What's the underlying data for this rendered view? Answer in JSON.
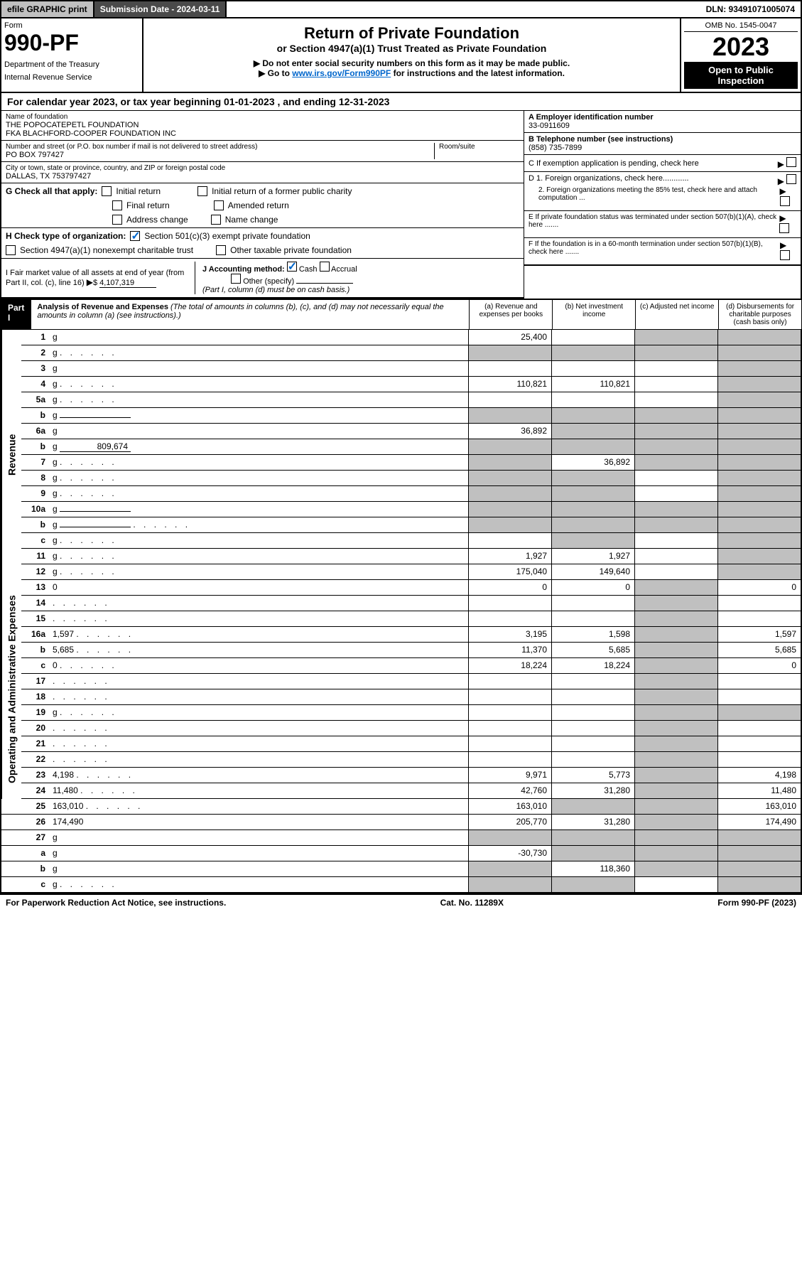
{
  "topbar": {
    "print": "efile GRAPHIC print",
    "submission": "Submission Date - 2024-03-11",
    "dln": "DLN: 93491071005074"
  },
  "header": {
    "form_label": "Form",
    "form_num": "990-PF",
    "dept1": "Department of the Treasury",
    "dept2": "Internal Revenue Service",
    "title": "Return of Private Foundation",
    "subtitle": "or Section 4947(a)(1) Trust Treated as Private Foundation",
    "note1": "▶ Do not enter social security numbers on this form as it may be made public.",
    "note2_pre": "▶ Go to ",
    "note2_link": "www.irs.gov/Form990PF",
    "note2_post": " for instructions and the latest information.",
    "omb": "OMB No. 1545-0047",
    "year": "2023",
    "open": "Open to Public Inspection"
  },
  "calyear": "For calendar year 2023, or tax year beginning 01-01-2023                           , and ending 12-31-2023",
  "info": {
    "name_lbl": "Name of foundation",
    "name1": "THE POPOCATEPETL FOUNDATION",
    "name2": "FKA BLACHFORD-COOPER FOUNDATION INC",
    "addr_lbl": "Number and street (or P.O. box number if mail is not delivered to street address)",
    "addr": "PO BOX 797427",
    "room_lbl": "Room/suite",
    "city_lbl": "City or town, state or province, country, and ZIP or foreign postal code",
    "city": "DALLAS, TX  753797427",
    "ein_lbl": "A Employer identification number",
    "ein": "33-0911609",
    "phone_lbl": "B Telephone number (see instructions)",
    "phone": "(858) 735-7899",
    "c_lbl": "C If exemption application is pending, check here",
    "d1_lbl": "D 1. Foreign organizations, check here............",
    "d2_lbl": "2. Foreign organizations meeting the 85% test, check here and attach computation ...",
    "e_lbl": "E  If private foundation status was terminated under section 507(b)(1)(A), check here .......",
    "f_lbl": "F  If the foundation is in a 60-month termination under section 507(b)(1)(B), check here .......",
    "g_lbl": "G Check all that apply:",
    "g1": "Initial return",
    "g2": "Final return",
    "g3": "Address change",
    "g4": "Initial return of a former public charity",
    "g5": "Amended return",
    "g6": "Name change",
    "h_lbl": "H Check type of organization:",
    "h1": "Section 501(c)(3) exempt private foundation",
    "h2": "Section 4947(a)(1) nonexempt charitable trust",
    "h3": "Other taxable private foundation",
    "i_lbl": "I Fair market value of all assets at end of year (from Part II, col. (c), line 16)",
    "i_val": "4,107,319",
    "j_lbl": "J Accounting method:",
    "j1": "Cash",
    "j2": "Accrual",
    "j3": "Other (specify)",
    "j_note": "(Part I, column (d) must be on cash basis.)"
  },
  "part1": {
    "label": "Part I",
    "title": "Analysis of Revenue and Expenses",
    "title_note": "(The total of amounts in columns (b), (c), and (d) may not necessarily equal the amounts in column (a) (see instructions).)",
    "col_a": "(a)   Revenue and expenses per books",
    "col_b": "(b)   Net investment income",
    "col_c": "(c)   Adjusted net income",
    "col_d": "(d)   Disbursements for charitable purposes (cash basis only)"
  },
  "side_labels": {
    "revenue": "Revenue",
    "expenses": "Operating and Administrative Expenses"
  },
  "rows": [
    {
      "n": "1",
      "d": "g",
      "a": "25,400",
      "b": "",
      "c": "g"
    },
    {
      "n": "2",
      "d": "g",
      "dots": true,
      "a": "g",
      "b": "g",
      "c": "g"
    },
    {
      "n": "3",
      "d": "g",
      "a": "",
      "b": "",
      "c": ""
    },
    {
      "n": "4",
      "d": "g",
      "dots": true,
      "a": "110,821",
      "b": "110,821",
      "c": ""
    },
    {
      "n": "5a",
      "d": "g",
      "dots": true,
      "a": "",
      "b": "",
      "c": ""
    },
    {
      "n": "b",
      "d": "g",
      "inline": "",
      "a": "g",
      "b": "g",
      "c": "g"
    },
    {
      "n": "6a",
      "d": "g",
      "a": "36,892",
      "b": "g",
      "c": "g"
    },
    {
      "n": "b",
      "d": "g",
      "inline": "809,674",
      "a": "g",
      "b": "g",
      "c": "g"
    },
    {
      "n": "7",
      "d": "g",
      "dots": true,
      "a": "g",
      "b": "36,892",
      "c": "g"
    },
    {
      "n": "8",
      "d": "g",
      "dots": true,
      "a": "g",
      "b": "g",
      "c": ""
    },
    {
      "n": "9",
      "d": "g",
      "dots": true,
      "a": "g",
      "b": "g",
      "c": ""
    },
    {
      "n": "10a",
      "d": "g",
      "inline": "",
      "a": "g",
      "b": "g",
      "c": "g"
    },
    {
      "n": "b",
      "d": "g",
      "dots": true,
      "inline": "",
      "a": "g",
      "b": "g",
      "c": "g"
    },
    {
      "n": "c",
      "d": "g",
      "dots": true,
      "a": "",
      "b": "g",
      "c": ""
    },
    {
      "n": "11",
      "d": "g",
      "dots": true,
      "a": "1,927",
      "b": "1,927",
      "c": ""
    },
    {
      "n": "12",
      "d": "g",
      "dots": true,
      "a": "175,040",
      "b": "149,640",
      "c": ""
    },
    {
      "n": "13",
      "d": "0",
      "a": "0",
      "b": "0",
      "c": "g"
    },
    {
      "n": "14",
      "d": "",
      "dots": true,
      "a": "",
      "b": "",
      "c": "g"
    },
    {
      "n": "15",
      "d": "",
      "dots": true,
      "a": "",
      "b": "",
      "c": "g"
    },
    {
      "n": "16a",
      "d": "1,597",
      "dots": true,
      "a": "3,195",
      "b": "1,598",
      "c": "g"
    },
    {
      "n": "b",
      "d": "5,685",
      "dots": true,
      "a": "11,370",
      "b": "5,685",
      "c": "g"
    },
    {
      "n": "c",
      "d": "0",
      "dots": true,
      "a": "18,224",
      "b": "18,224",
      "c": "g"
    },
    {
      "n": "17",
      "d": "",
      "dots": true,
      "a": "",
      "b": "",
      "c": "g"
    },
    {
      "n": "18",
      "d": "",
      "dots": true,
      "a": "",
      "b": "",
      "c": "g"
    },
    {
      "n": "19",
      "d": "g",
      "dots": true,
      "a": "",
      "b": "",
      "c": "g"
    },
    {
      "n": "20",
      "d": "",
      "dots": true,
      "a": "",
      "b": "",
      "c": "g"
    },
    {
      "n": "21",
      "d": "",
      "dots": true,
      "a": "",
      "b": "",
      "c": "g"
    },
    {
      "n": "22",
      "d": "",
      "dots": true,
      "a": "",
      "b": "",
      "c": "g"
    },
    {
      "n": "23",
      "d": "4,198",
      "dots": true,
      "a": "9,971",
      "b": "5,773",
      "c": "g"
    },
    {
      "n": "24",
      "d": "11,480",
      "dots": true,
      "a": "42,760",
      "b": "31,280",
      "c": "g"
    },
    {
      "n": "25",
      "d": "163,010",
      "dots": true,
      "a": "163,010",
      "b": "g",
      "c": "g"
    },
    {
      "n": "26",
      "d": "174,490",
      "a": "205,770",
      "b": "31,280",
      "c": "g"
    },
    {
      "n": "27",
      "d": "g",
      "a": "g",
      "b": "g",
      "c": "g"
    },
    {
      "n": "a",
      "d": "g",
      "a": "-30,730",
      "b": "g",
      "c": "g"
    },
    {
      "n": "b",
      "d": "g",
      "a": "g",
      "b": "118,360",
      "c": "g"
    },
    {
      "n": "c",
      "d": "g",
      "dots": true,
      "a": "g",
      "b": "g",
      "c": ""
    }
  ],
  "footer": {
    "left": "For Paperwork Reduction Act Notice, see instructions.",
    "mid": "Cat. No. 11289X",
    "right": "Form 990-PF (2023)"
  }
}
